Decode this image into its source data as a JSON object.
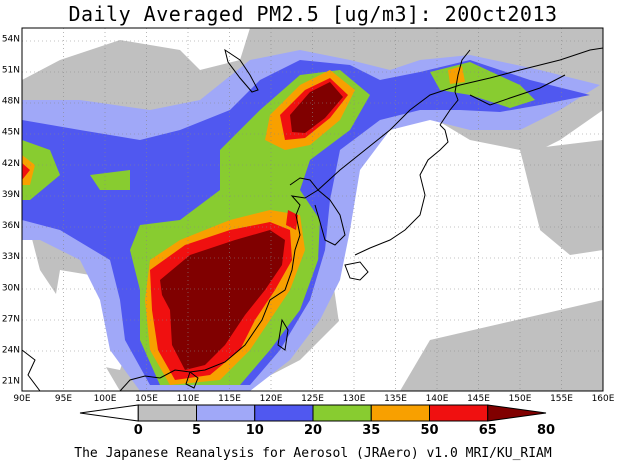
{
  "title": "Daily Averaged PM2.5 [ug/m3]: 20Oct2013",
  "credit": "The Japanese Reanalysis for Aerosol (JRAero) v1.0 MRI/KU_RIAM",
  "map": {
    "lon_range": [
      90,
      160
    ],
    "lat_range": [
      20,
      55
    ],
    "lon_ticks": [
      "90E",
      "95E",
      "100E",
      "105E",
      "110E",
      "115E",
      "120E",
      "125E",
      "130E",
      "135E",
      "140E",
      "145E",
      "150E",
      "155E",
      "160E"
    ],
    "lat_ticks": [
      "21N",
      "24N",
      "27N",
      "30N",
      "33N",
      "36N",
      "39N",
      "42N",
      "45N",
      "48N",
      "51N",
      "54N"
    ]
  },
  "colorbar": {
    "labels": [
      "0",
      "5",
      "10",
      "20",
      "35",
      "50",
      "65",
      "80"
    ],
    "colors": [
      "#ffffff",
      "#c0c0c0",
      "#a0a8f8",
      "#5058f0",
      "#88cc30",
      "#f8a000",
      "#f01010",
      "#800000"
    ]
  }
}
